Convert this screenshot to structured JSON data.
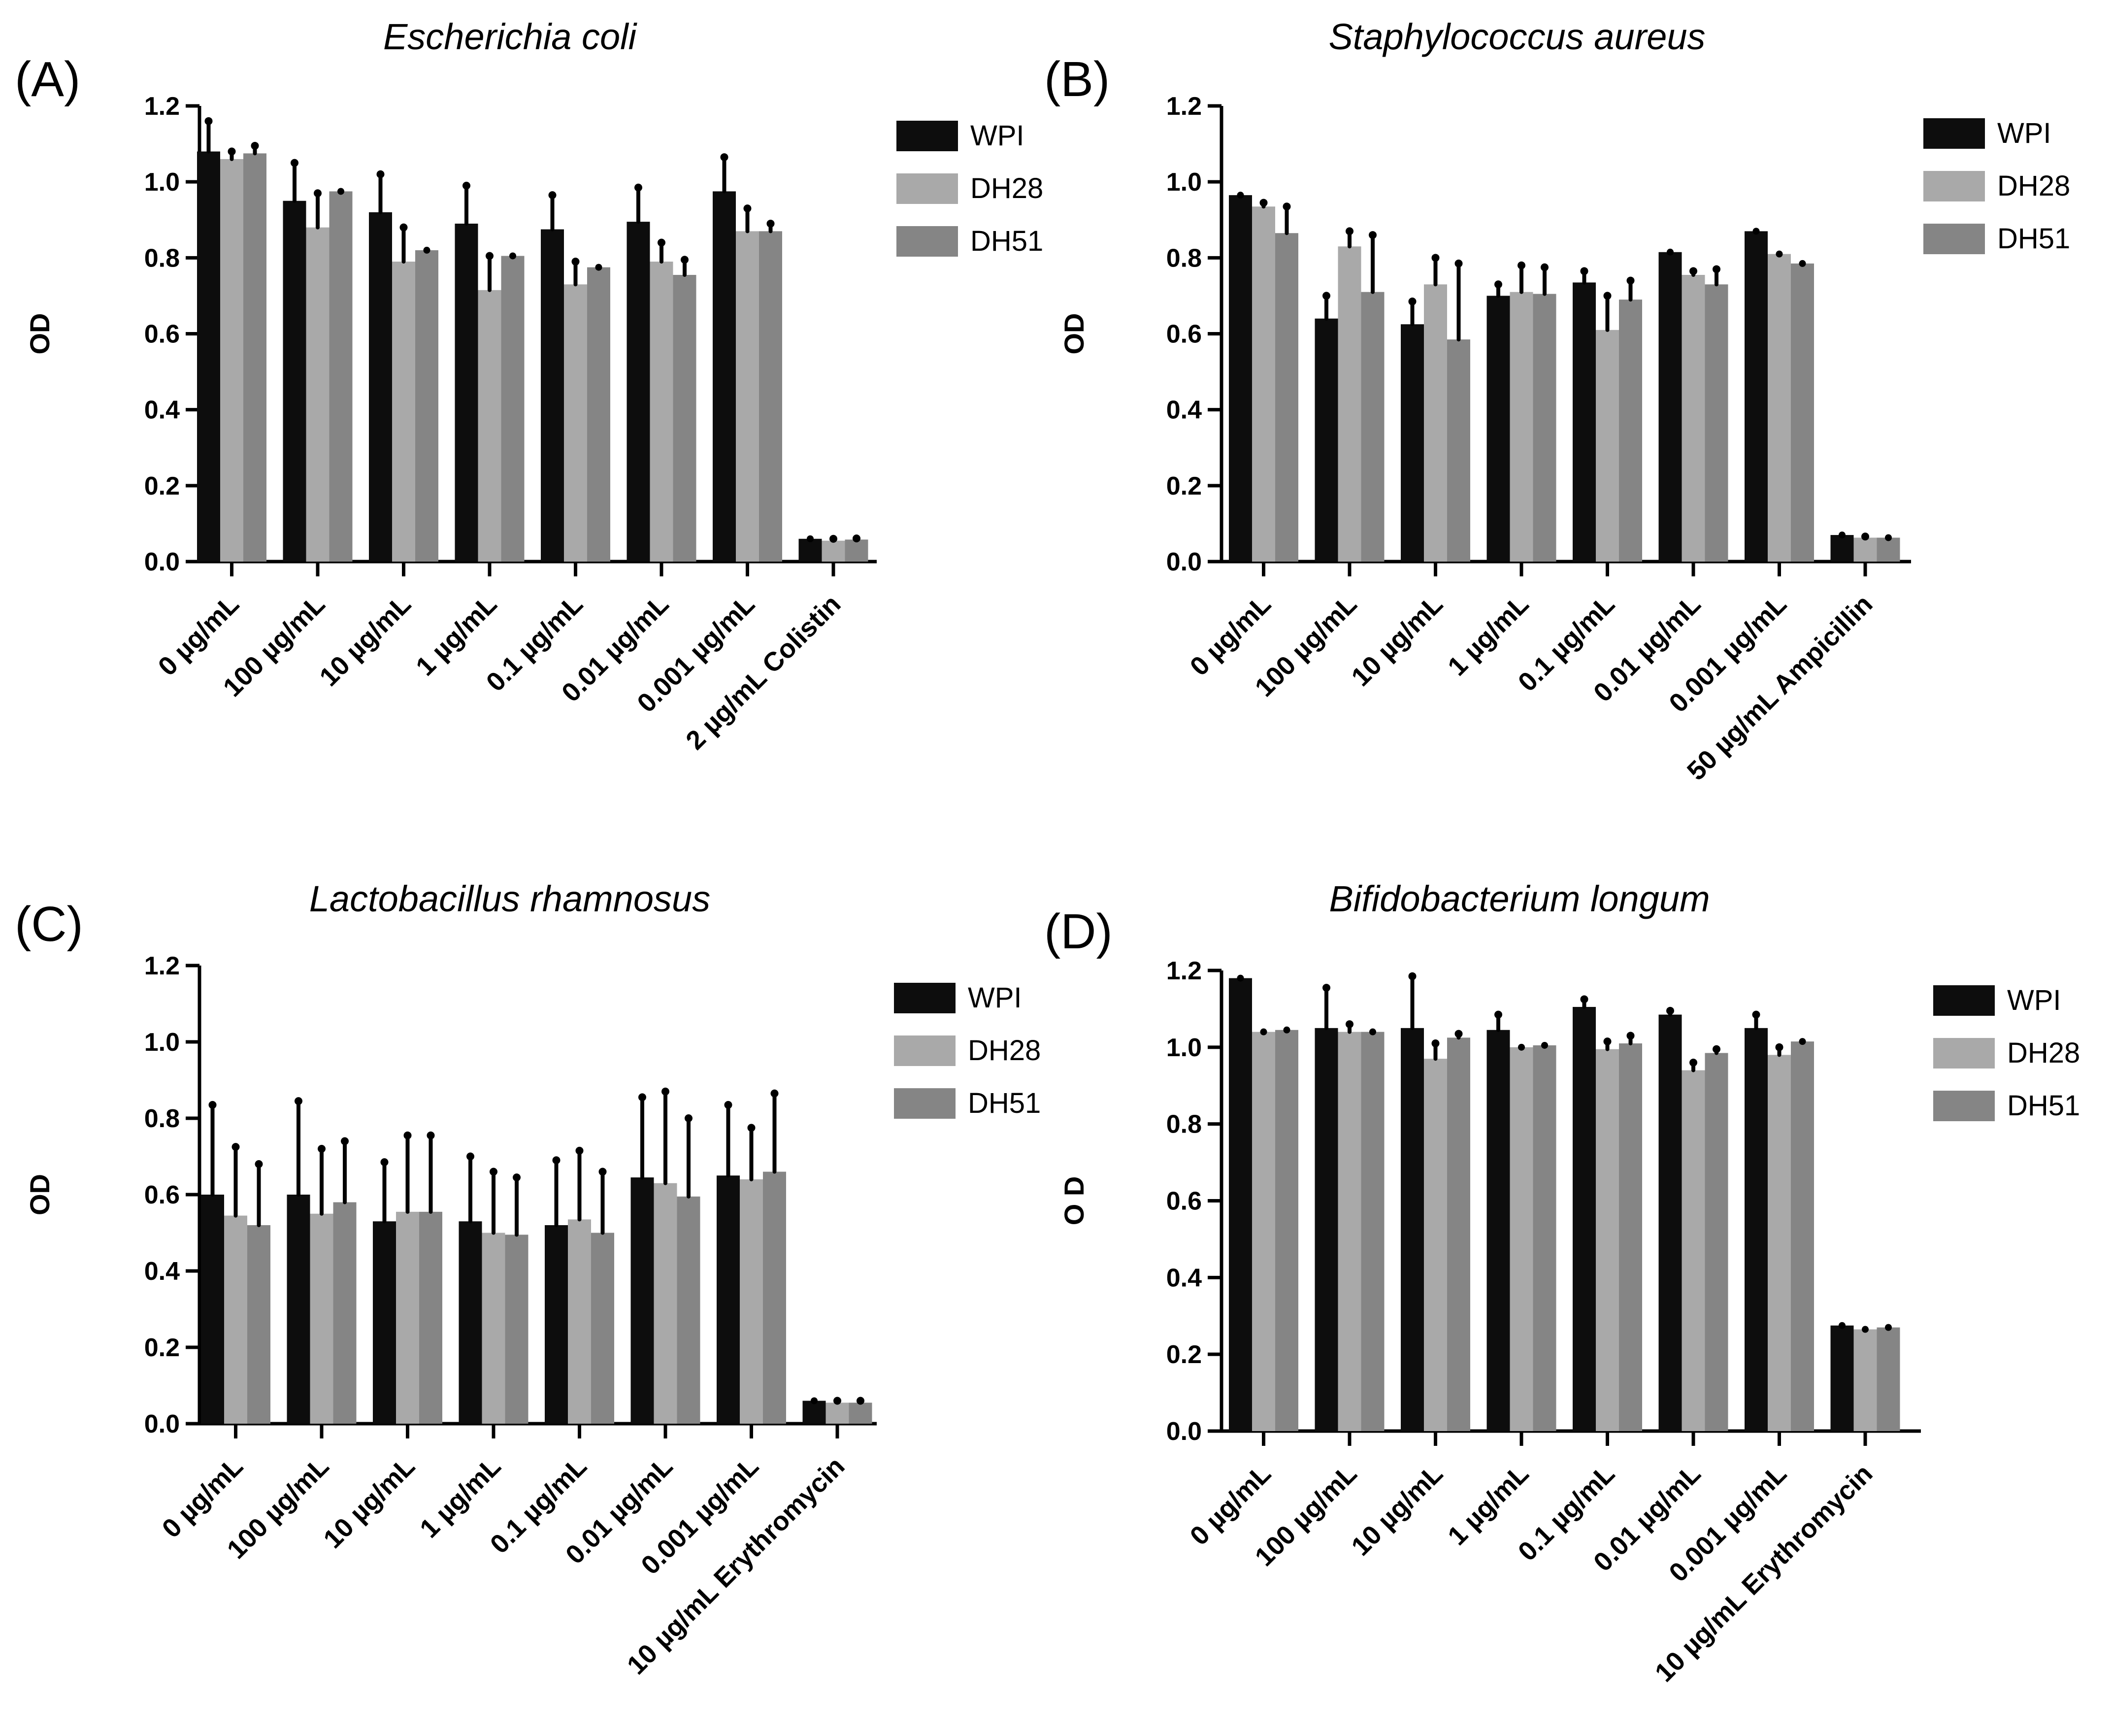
{
  "series_colors": {
    "WPI": "#0d0d0d",
    "DH28": "#a9a9a9",
    "DH51": "#858585"
  },
  "chart_data": [
    {
      "panel": "(A)",
      "type": "bar",
      "title": "Escherichia coli",
      "xlabel": "",
      "ylabel": "OD",
      "ylim": [
        0,
        1.2
      ],
      "yticks": [
        "0.0",
        "0.2",
        "0.4",
        "0.6",
        "0.8",
        "1.0",
        "1.2"
      ],
      "categories": [
        "0 µg/mL",
        "100 µg/mL",
        "10 µg/mL",
        "1 µg/mL",
        "0.1 µg/mL",
        "0.01 µg/mL",
        "0.001 µg/mL",
        "2 µg/mL Colistin"
      ],
      "legend": [
        "WPI",
        "DH28",
        "DH51"
      ],
      "legend_position": "right",
      "series": [
        {
          "name": "WPI",
          "values": [
            1.08,
            0.95,
            0.92,
            0.89,
            0.875,
            0.895,
            0.975,
            0.06
          ],
          "errors": [
            0.08,
            0.1,
            0.1,
            0.1,
            0.09,
            0.09,
            0.09,
            0.0
          ]
        },
        {
          "name": "DH28",
          "values": [
            1.06,
            0.88,
            0.79,
            0.715,
            0.73,
            0.79,
            0.87,
            0.055
          ],
          "errors": [
            0.02,
            0.09,
            0.09,
            0.09,
            0.06,
            0.05,
            0.06,
            0.005
          ]
        },
        {
          "name": "DH51",
          "values": [
            1.075,
            0.975,
            0.82,
            0.805,
            0.775,
            0.755,
            0.87,
            0.058
          ],
          "errors": [
            0.02,
            0.0,
            0.0,
            0.0,
            0.0,
            0.04,
            0.02,
            0.003
          ]
        }
      ]
    },
    {
      "panel": "(B)",
      "type": "bar",
      "title": "Staphylococcus aureus",
      "xlabel": "",
      "ylabel": "OD",
      "ylim": [
        0,
        1.2
      ],
      "yticks": [
        "0.0",
        "0.2",
        "0.4",
        "0.6",
        "0.8",
        "1.0",
        "1.2"
      ],
      "categories": [
        "0 µg/mL",
        "100 µg/mL",
        "10 µg/mL",
        "1 µg/mL",
        "0.1 µg/mL",
        "0.01 µg/mL",
        "0.001 µg/mL",
        "50 µg/mL Ampicillin"
      ],
      "legend": [
        "WPI",
        "DH28",
        "DH51"
      ],
      "legend_position": "right",
      "series": [
        {
          "name": "WPI",
          "values": [
            0.965,
            0.64,
            0.625,
            0.7,
            0.735,
            0.815,
            0.87,
            0.07
          ],
          "errors": [
            0.0,
            0.06,
            0.06,
            0.03,
            0.03,
            0.0,
            0.0,
            0.0
          ]
        },
        {
          "name": "DH28",
          "values": [
            0.935,
            0.83,
            0.73,
            0.71,
            0.61,
            0.755,
            0.81,
            0.063
          ],
          "errors": [
            0.01,
            0.04,
            0.07,
            0.07,
            0.09,
            0.01,
            0.0,
            0.003
          ]
        },
        {
          "name": "DH51",
          "values": [
            0.865,
            0.71,
            0.585,
            0.705,
            0.69,
            0.73,
            0.785,
            0.063
          ],
          "errors": [
            0.07,
            0.15,
            0.2,
            0.07,
            0.05,
            0.04,
            0.0,
            0.0
          ]
        }
      ]
    },
    {
      "panel": "(C)",
      "type": "bar",
      "title": "Lactobacillus rhamnosus",
      "xlabel": "",
      "ylabel": "OD",
      "ylim": [
        0,
        1.2
      ],
      "yticks": [
        "0.0",
        "0.2",
        "0.4",
        "0.6",
        "0.8",
        "1.0",
        "1.2"
      ],
      "categories": [
        "0 µg/mL",
        "100 µg/mL",
        "10 µg/mL",
        "1 µg/mL",
        "0.1 µg/mL",
        "0.01 µg/mL",
        "0.001 µg/mL",
        "10 µg/mL Erythromycin"
      ],
      "legend": [
        "WPI",
        "DH28",
        "DH51"
      ],
      "legend_position": "right",
      "series": [
        {
          "name": "WPI",
          "values": [
            0.6,
            0.6,
            0.53,
            0.53,
            0.52,
            0.645,
            0.65,
            0.06
          ],
          "errors": [
            0.235,
            0.245,
            0.155,
            0.17,
            0.17,
            0.21,
            0.185,
            0.0
          ]
        },
        {
          "name": "DH28",
          "values": [
            0.545,
            0.55,
            0.555,
            0.5,
            0.535,
            0.63,
            0.64,
            0.055
          ],
          "errors": [
            0.18,
            0.17,
            0.2,
            0.16,
            0.18,
            0.24,
            0.135,
            0.005
          ]
        },
        {
          "name": "DH51",
          "values": [
            0.52,
            0.58,
            0.555,
            0.495,
            0.5,
            0.595,
            0.66,
            0.055
          ],
          "errors": [
            0.16,
            0.16,
            0.2,
            0.15,
            0.16,
            0.205,
            0.205,
            0.005
          ]
        }
      ]
    },
    {
      "panel": "(D)",
      "type": "bar",
      "title": "Bifidobacterium longum",
      "xlabel": "",
      "ylabel": "O D",
      "ylim": [
        0,
        1.2
      ],
      "yticks": [
        "0.0",
        "0.2",
        "0.4",
        "0.6",
        "0.8",
        "1.0",
        "1.2"
      ],
      "categories": [
        "0 µg/mL",
        "100 µg/mL",
        "10 µg/mL",
        "1 µg/mL",
        "0.1 µg/mL",
        "0.01 µg/mL",
        "0.001 µg/mL",
        "10 µg/mL Erythromycin"
      ],
      "legend": [
        "WPI",
        "DH28",
        "DH51"
      ],
      "legend_position": "right",
      "series": [
        {
          "name": "WPI",
          "values": [
            1.18,
            1.05,
            1.05,
            1.045,
            1.105,
            1.085,
            1.05,
            0.275
          ],
          "errors": [
            0.0,
            0.105,
            0.135,
            0.04,
            0.02,
            0.01,
            0.035,
            0.0
          ]
        },
        {
          "name": "DH28",
          "values": [
            1.04,
            1.04,
            0.97,
            1.0,
            0.995,
            0.94,
            0.98,
            0.265
          ],
          "errors": [
            0.0,
            0.02,
            0.04,
            0.0,
            0.02,
            0.02,
            0.02,
            0.0
          ]
        },
        {
          "name": "DH51",
          "values": [
            1.045,
            1.04,
            1.025,
            1.005,
            1.01,
            0.985,
            1.015,
            0.27
          ],
          "errors": [
            0.0,
            0.0,
            0.01,
            0.0,
            0.02,
            0.01,
            0.0,
            0.0
          ]
        }
      ]
    }
  ]
}
